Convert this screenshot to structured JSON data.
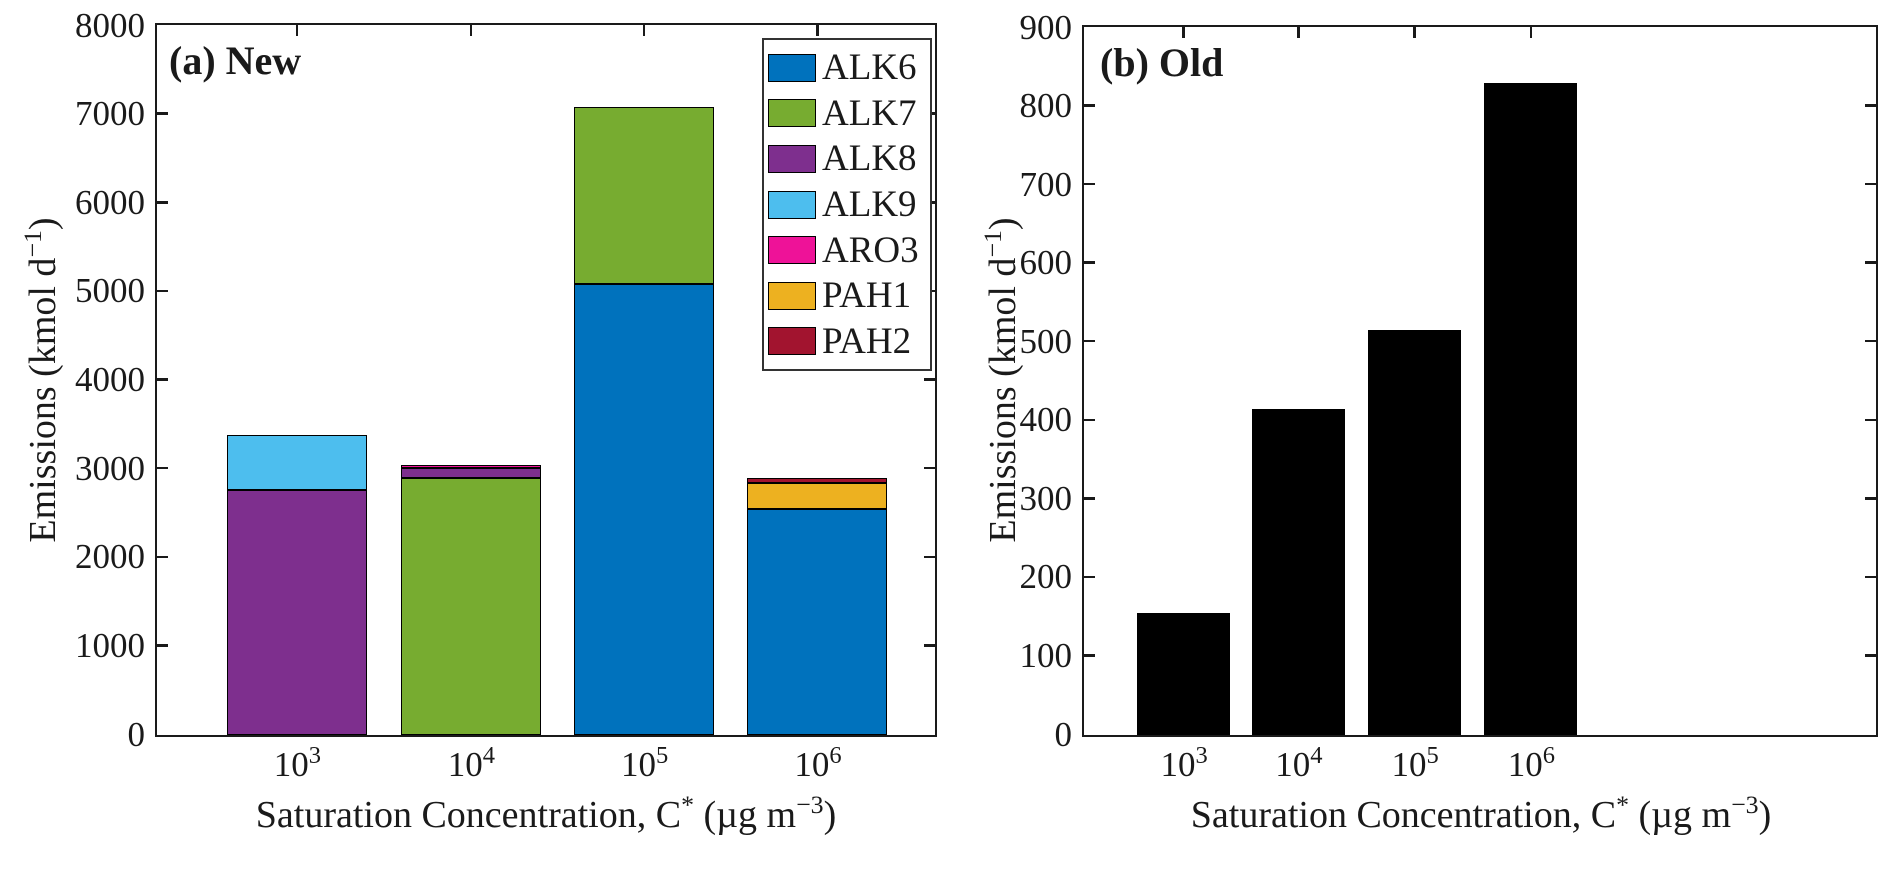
{
  "page": {
    "background": "#ffffff",
    "description": "Two-panel stacked bar figure comparing emissions by saturation concentration bin"
  },
  "style_hints": {
    "axis_color": "#1a1a1a",
    "bar_edge_color": "#000000",
    "legend_border_color": "#333333",
    "text_color": "#1a1a1a"
  },
  "chart_data": [
    {
      "type": "bar",
      "stacked": true,
      "title": "(a) New",
      "xlabel": "Saturation Concentration, C* (µg m⁻³)",
      "ylabel": "Emissions (kmol d⁻¹)",
      "xlabel_parts": [
        {
          "t": "Saturation Concentration, C"
        },
        {
          "t": "*",
          "sup": true
        },
        {
          "t": " (µg m"
        },
        {
          "t": "−3",
          "sup": true
        },
        {
          "t": ")"
        }
      ],
      "ylabel_parts": [
        {
          "t": "Emissions (kmol d"
        },
        {
          "t": "−1",
          "sup": true
        },
        {
          "t": ")"
        }
      ],
      "categories": [
        "10^3",
        "10^4",
        "10^5",
        "10^6"
      ],
      "ylim": [
        0,
        8000
      ],
      "yticks": [
        0,
        1000,
        2000,
        3000,
        4000,
        5000,
        6000,
        7000,
        8000
      ],
      "grid": false,
      "legend_position": "top-right",
      "series": [
        {
          "name": "ALK6",
          "color": "#0072BD",
          "values": [
            0,
            0,
            5090,
            2550
          ]
        },
        {
          "name": "ALK7",
          "color": "#77AC30",
          "values": [
            0,
            2900,
            2000,
            0
          ]
        },
        {
          "name": "ALK8",
          "color": "#7E2F8E",
          "values": [
            2770,
            110,
            0,
            0
          ]
        },
        {
          "name": "ALK9",
          "color": "#4DBEEE",
          "values": [
            620,
            0,
            0,
            0
          ]
        },
        {
          "name": "ARO3",
          "color": "#EE1298",
          "values": [
            0,
            40,
            0,
            0
          ]
        },
        {
          "name": "PAH1",
          "color": "#EDB120",
          "values": [
            0,
            0,
            0,
            290
          ]
        },
        {
          "name": "PAH2",
          "color": "#A2142F",
          "values": [
            0,
            0,
            0,
            60
          ]
        }
      ],
      "bar_totals": [
        3390,
        3050,
        7090,
        2900
      ]
    },
    {
      "type": "bar",
      "stacked": false,
      "title": "(b) Old",
      "xlabel": "Saturation Concentration, C* (µg m⁻³)",
      "ylabel": "Emissions (kmol d⁻¹)",
      "xlabel_parts": [
        {
          "t": "Saturation Concentration, C"
        },
        {
          "t": "*",
          "sup": true
        },
        {
          "t": " (µg m"
        },
        {
          "t": "−3",
          "sup": true
        },
        {
          "t": ")"
        }
      ],
      "ylabel_parts": [
        {
          "t": "Emissions (kmol d"
        },
        {
          "t": "−1",
          "sup": true
        },
        {
          "t": ")"
        }
      ],
      "categories": [
        "10^3",
        "10^4",
        "10^5",
        "10^6"
      ],
      "ylim": [
        0,
        900
      ],
      "yticks": [
        0,
        100,
        200,
        300,
        400,
        500,
        600,
        700,
        800,
        900
      ],
      "grid": false,
      "bar_color": "#000000",
      "values": [
        155,
        415,
        515,
        830
      ]
    }
  ]
}
